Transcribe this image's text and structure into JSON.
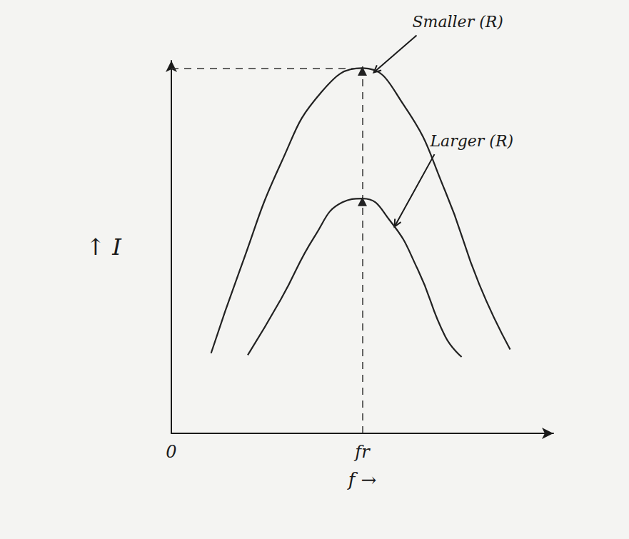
{
  "chart_data": {
    "type": "line",
    "x_label": "f →",
    "y_label": "↑ I",
    "xlim": [
      0,
      10
    ],
    "xticks": [
      0,
      {
        "value": 5,
        "label": "fr"
      }
    ],
    "ylim": [
      0,
      10
    ],
    "yticks": [],
    "tick_labels": "x",
    "grid": false,
    "series": [
      {
        "annotation": "Smaller (R)",
        "color": "#222222",
        "x": [
          1.04,
          1.8,
          2.87,
          3.94,
          5,
          6.09,
          7.17,
          8.06,
          8.87
        ],
        "values": [
          2.15,
          4.4,
          7.25,
          9.17,
          9.8,
          8.8,
          6.5,
          4.0,
          2.25
        ]
      },
      {
        "annotation": "Larger (R)",
        "color": "#222222",
        "x": [
          2.0,
          2.87,
          3.76,
          4.48,
          5,
          5.73,
          6.45,
          7.17,
          7.6
        ],
        "values": [
          2.1,
          3.6,
          5.3,
          6.2,
          6.3,
          5.7,
          4.4,
          2.6,
          2.05
        ]
      }
    ]
  }
}
